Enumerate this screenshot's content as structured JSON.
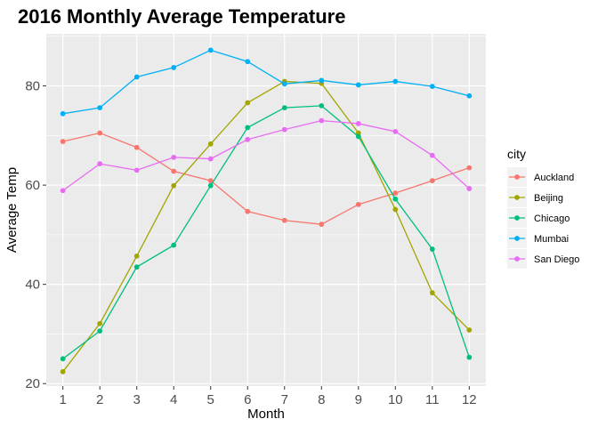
{
  "chart_data": {
    "type": "line",
    "title": "2016 Monthly Average Temperature",
    "xlabel": "Month",
    "ylabel": "Average Temp",
    "x": [
      1,
      2,
      3,
      4,
      5,
      6,
      7,
      8,
      9,
      10,
      11,
      12
    ],
    "xlim": [
      0.55,
      12.45
    ],
    "ylim": [
      19.5,
      90.5
    ],
    "xticks": [
      "1",
      "2",
      "3",
      "4",
      "5",
      "6",
      "7",
      "8",
      "9",
      "10",
      "11",
      "12"
    ],
    "yticks": [
      20,
      40,
      60,
      80
    ],
    "grid": true,
    "legend": {
      "title": "city",
      "position": "right"
    },
    "series": [
      {
        "name": "Auckland",
        "color": "#F8766D",
        "values": [
          68.8,
          70.5,
          67.6,
          62.8,
          60.9,
          54.7,
          52.9,
          52.1,
          56.1,
          58.4,
          60.9,
          63.5
        ]
      },
      {
        "name": "Beijing",
        "color": "#A3A500",
        "values": [
          22.4,
          32.1,
          45.7,
          59.9,
          68.3,
          76.6,
          80.9,
          80.5,
          70.5,
          55.1,
          38.3,
          30.8
        ]
      },
      {
        "name": "Chicago",
        "color": "#00BF7D",
        "values": [
          25.0,
          30.6,
          43.5,
          47.9,
          59.9,
          71.6,
          75.6,
          76.0,
          69.8,
          57.2,
          47.1,
          25.3
        ]
      },
      {
        "name": "Mumbai",
        "color": "#00B0F6",
        "values": [
          74.4,
          75.6,
          81.8,
          83.7,
          87.2,
          84.9,
          80.4,
          81.1,
          80.2,
          80.9,
          79.9,
          78.0
        ]
      },
      {
        "name": "San Diego",
        "color": "#E76BF3",
        "values": [
          58.9,
          64.3,
          63.0,
          65.6,
          65.3,
          69.2,
          71.2,
          73.0,
          72.4,
          70.8,
          66.0,
          59.3
        ]
      }
    ]
  }
}
